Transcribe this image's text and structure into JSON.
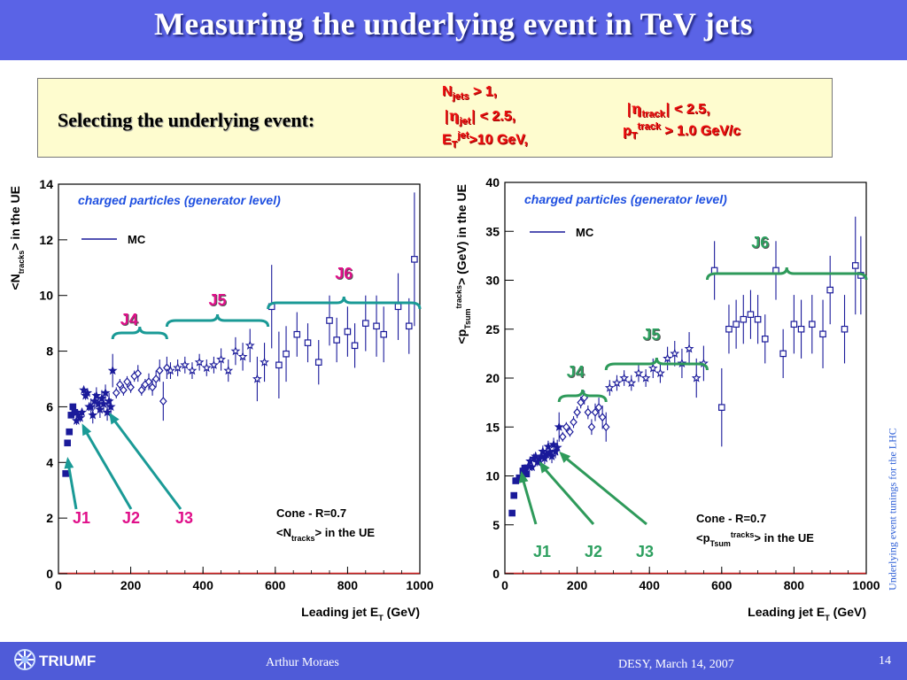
{
  "slide": {
    "title": "Measuring the underlying event in TeV jets",
    "selection_label": "Selecting the underlying event:",
    "side_text": "Underlying event tunings for the LHC",
    "footer": {
      "logo": "TRIUMF",
      "author": "Arthur Moraes",
      "date": "DESY, March 14, 2007",
      "page": "14"
    },
    "colors": {
      "header": "#5a63e6",
      "footer": "#4f5bd8",
      "box": "#fefccf",
      "criteria": "#ee1010",
      "brace_left": "#1a9a96",
      "brace_right": "#2e9a5a",
      "markers": "#1a1a9a"
    },
    "icons": [
      "triumf-logo-icon"
    ]
  },
  "criteria": {
    "njets": {
      "sym": "N",
      "sub": "jets",
      "rel": "> 1,"
    },
    "eta_jet": {
      "sym": "η",
      "sub": "jet",
      "rel": "< 2.5,"
    },
    "et_jet": {
      "sym": "E",
      "sub": "T",
      "sup": "jet",
      "rel": ">10 GeV,"
    },
    "eta_track": {
      "sym": "η",
      "sub": "track",
      "rel": "< 2.5,"
    },
    "pt_track": {
      "sym": "p",
      "sub": "T",
      "sup": "track",
      "rel": "> 1.0 GeV/c"
    }
  },
  "chart_data": [
    {
      "type": "scatter",
      "annotation": "charged particles (generator level)",
      "legend": [
        "MC"
      ],
      "xlabel": "Leading jet E_T (GeV)",
      "ylabel": "<N_tracks> in the UE",
      "xlim": [
        0,
        1000
      ],
      "ylim": [
        0,
        14
      ],
      "xticks": [
        0,
        200,
        400,
        600,
        800,
        1000
      ],
      "yticks": [
        0,
        2,
        4,
        6,
        8,
        10,
        12,
        14
      ],
      "info_lines": [
        "Cone - R=0.7",
        "<N_tracks> in the UE"
      ],
      "jet_labels": [
        "J1",
        "J2",
        "J3",
        "J4",
        "J5",
        "J6"
      ],
      "jet_ranges": {
        "J4": [
          150,
          300
        ],
        "J5": [
          300,
          580
        ],
        "J6": [
          580,
          1000
        ]
      },
      "arrows": [
        {
          "label": "J1",
          "target": [
            25,
            4.2
          ]
        },
        {
          "label": "J2",
          "target": [
            65,
            5.4
          ]
        },
        {
          "label": "J3",
          "target": [
            140,
            5.8
          ]
        }
      ],
      "series": [
        {
          "name": "J1",
          "marker": "filled-square",
          "x": [
            20,
            25,
            30,
            35,
            40,
            45
          ],
          "y": [
            3.6,
            4.7,
            5.1,
            5.7,
            6.0,
            5.8
          ],
          "err": [
            0.1,
            0.1,
            0.1,
            0.1,
            0.1,
            0.1
          ]
        },
        {
          "name": "J2",
          "marker": "filled-star",
          "x": [
            50,
            55,
            60,
            65,
            70,
            75,
            80,
            85
          ],
          "y": [
            5.5,
            5.7,
            5.6,
            5.8,
            6.6,
            6.4,
            6.5,
            6.0
          ],
          "err": [
            0.15,
            0.15,
            0.15,
            0.15,
            0.15,
            0.15,
            0.15,
            0.15
          ]
        },
        {
          "name": "J3",
          "marker": "filled-star",
          "x": [
            90,
            95,
            100,
            105,
            110,
            115,
            120,
            125,
            130,
            135,
            140,
            145,
            150
          ],
          "y": [
            6.0,
            5.7,
            6.2,
            6.4,
            6.1,
            5.9,
            6.3,
            6.1,
            6.5,
            5.8,
            6.2,
            6.0,
            7.3
          ],
          "err": [
            0.3,
            0.3,
            0.3,
            0.3,
            0.3,
            0.3,
            0.3,
            0.3,
            0.3,
            0.3,
            0.3,
            0.3,
            0.6
          ]
        },
        {
          "name": "J4",
          "marker": "open-diamond",
          "x": [
            160,
            170,
            180,
            190,
            200,
            210,
            220,
            230,
            240,
            250,
            260,
            270,
            280,
            290,
            300
          ],
          "y": [
            6.5,
            6.8,
            6.6,
            6.9,
            6.7,
            7.1,
            7.2,
            6.6,
            6.8,
            6.9,
            6.7,
            7.0,
            7.3,
            6.2,
            7.4
          ],
          "err": [
            0.2,
            0.2,
            0.2,
            0.2,
            0.2,
            0.2,
            0.3,
            0.2,
            0.2,
            0.3,
            0.3,
            0.3,
            0.4,
            0.7,
            0.4
          ]
        },
        {
          "name": "J5",
          "marker": "open-star",
          "x": [
            310,
            330,
            350,
            370,
            390,
            410,
            430,
            450,
            470,
            490,
            510,
            530,
            550,
            570
          ],
          "y": [
            7.3,
            7.4,
            7.5,
            7.3,
            7.6,
            7.4,
            7.5,
            7.7,
            7.3,
            8.0,
            7.8,
            8.2,
            7.0,
            7.6
          ],
          "err": [
            0.3,
            0.3,
            0.3,
            0.3,
            0.3,
            0.3,
            0.3,
            0.4,
            0.4,
            0.5,
            0.5,
            0.6,
            0.8,
            0.7
          ]
        },
        {
          "name": "J6",
          "marker": "open-square",
          "x": [
            590,
            610,
            630,
            660,
            690,
            720,
            750,
            770,
            800,
            820,
            850,
            880,
            900,
            940,
            970,
            985
          ],
          "y": [
            9.6,
            7.5,
            7.9,
            8.6,
            8.3,
            7.6,
            9.1,
            8.4,
            8.7,
            8.2,
            9.0,
            8.9,
            8.6,
            9.6,
            8.9,
            11.3
          ],
          "err": [
            1.5,
            1.2,
            1.0,
            0.8,
            0.7,
            0.8,
            0.9,
            0.8,
            0.9,
            0.8,
            1.0,
            1.1,
            1.0,
            1.2,
            1.0,
            2.4
          ]
        }
      ]
    },
    {
      "type": "scatter",
      "annotation": "charged particles (generator level)",
      "legend": [
        "MC"
      ],
      "xlabel": "Leading jet E_T (GeV)",
      "ylabel": "<p_Tsum^tracks> (GeV) in the UE",
      "xlim": [
        0,
        1000
      ],
      "ylim": [
        0,
        40
      ],
      "xticks": [
        0,
        200,
        400,
        600,
        800,
        1000
      ],
      "yticks": [
        0,
        5,
        10,
        15,
        20,
        25,
        30,
        35,
        40
      ],
      "info_lines": [
        "Cone - R=0.7",
        "<p_Tsum^tracks> in the UE"
      ],
      "jet_labels": [
        "J1",
        "J2",
        "J3",
        "J4",
        "J5",
        "J6"
      ],
      "jet_ranges": {
        "J4": [
          150,
          280
        ],
        "J5": [
          280,
          560
        ],
        "J6": [
          560,
          1000
        ]
      },
      "arrows": [
        {
          "label": "J1",
          "target": [
            45,
            10.5
          ]
        },
        {
          "label": "J2",
          "target": [
            95,
            11.5
          ]
        },
        {
          "label": "J3",
          "target": [
            150,
            12.5
          ]
        }
      ],
      "series": [
        {
          "name": "J1",
          "marker": "filled-square",
          "x": [
            20,
            25,
            30,
            40,
            50,
            55,
            60
          ],
          "y": [
            6.2,
            8.0,
            9.5,
            9.8,
            10.5,
            10.8,
            10.2
          ],
          "err": [
            0.2,
            0.2,
            0.2,
            0.2,
            0.2,
            0.2,
            0.2
          ]
        },
        {
          "name": "J2",
          "marker": "filled-star",
          "x": [
            65,
            70,
            75,
            80,
            85,
            90,
            95,
            100
          ],
          "y": [
            11.0,
            11.5,
            10.9,
            11.8,
            12.0,
            11.4,
            11.7,
            12.0
          ],
          "err": [
            0.4,
            0.4,
            0.4,
            0.4,
            0.4,
            0.4,
            0.4,
            0.4
          ]
        },
        {
          "name": "J3",
          "marker": "filled-star",
          "x": [
            105,
            110,
            115,
            120,
            125,
            130,
            135,
            140,
            145,
            150
          ],
          "y": [
            12.5,
            11.8,
            12.2,
            13.0,
            12.4,
            12.0,
            13.2,
            12.5,
            12.9,
            15.0
          ],
          "err": [
            0.6,
            0.6,
            0.6,
            0.6,
            0.6,
            0.7,
            0.7,
            0.7,
            0.8,
            1.5
          ]
        },
        {
          "name": "J4",
          "marker": "open-diamond",
          "x": [
            160,
            170,
            180,
            190,
            200,
            210,
            220,
            230,
            240,
            250,
            260,
            270,
            280
          ],
          "y": [
            14.0,
            15.0,
            14.5,
            15.5,
            16.5,
            17.5,
            18.0,
            16.5,
            15.0,
            16.5,
            17.0,
            16.0,
            15.0
          ],
          "err": [
            0.5,
            0.5,
            0.5,
            0.6,
            0.6,
            0.6,
            0.7,
            0.7,
            0.8,
            0.9,
            1.0,
            1.2,
            1.5
          ]
        },
        {
          "name": "J5",
          "marker": "open-star",
          "x": [
            290,
            310,
            330,
            350,
            370,
            390,
            410,
            430,
            450,
            470,
            490,
            510,
            530,
            550
          ],
          "y": [
            19.0,
            19.5,
            20.0,
            19.5,
            20.5,
            20.0,
            21.0,
            20.5,
            22.0,
            22.5,
            21.5,
            23.0,
            20.0,
            21.5
          ],
          "err": [
            0.8,
            0.8,
            0.8,
            0.8,
            0.9,
            0.9,
            1.0,
            1.0,
            1.2,
            1.3,
            1.5,
            1.7,
            2.0,
            1.8
          ]
        },
        {
          "name": "J6",
          "marker": "open-square",
          "x": [
            580,
            600,
            620,
            640,
            660,
            680,
            700,
            720,
            750,
            770,
            800,
            820,
            850,
            880,
            900,
            940,
            970,
            985
          ],
          "y": [
            31.0,
            17.0,
            25.0,
            25.5,
            26.0,
            26.5,
            26.0,
            24.0,
            31.0,
            22.5,
            25.5,
            25.0,
            25.5,
            24.5,
            29.0,
            25.0,
            31.5,
            30.5
          ],
          "err": [
            3.0,
            4.0,
            2.5,
            2.5,
            2.5,
            2.5,
            2.5,
            2.5,
            3.0,
            2.5,
            3.0,
            3.0,
            3.0,
            3.5,
            3.5,
            3.5,
            5.0,
            4.0
          ]
        }
      ]
    }
  ]
}
